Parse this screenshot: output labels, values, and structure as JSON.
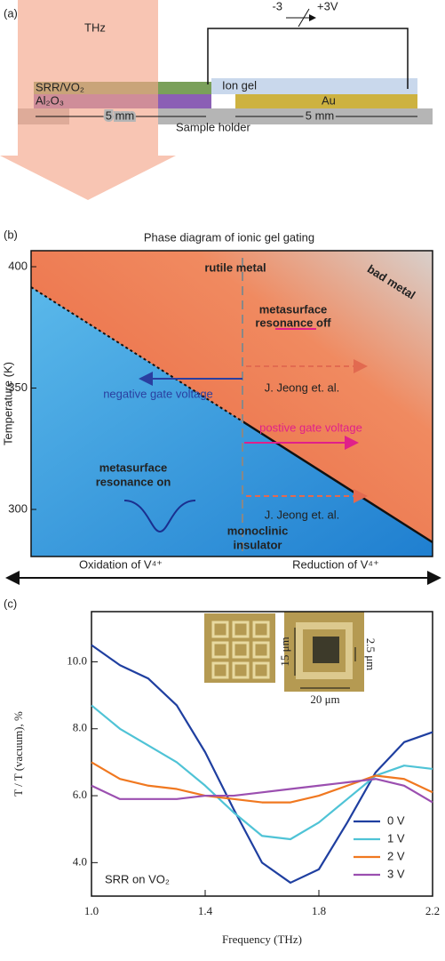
{
  "panel_a": {
    "label": "(a)",
    "beam": "THz",
    "voltage_low": "-3",
    "voltage_high": "+3V",
    "layer_top": "SRR/VO₂",
    "layer_bottom": "Al₂O₃",
    "ion_gel": "Ion gel",
    "electrode": "Au",
    "width_left": "5 mm",
    "width_right": "5 mm",
    "holder": "Sample holder"
  },
  "panel_b": {
    "label": "(b)",
    "title": "Phase diagram of ionic gel gating",
    "ylabel": "Temperature (K)",
    "ylim": [
      280.6,
      406.6
    ],
    "yticks": [
      300,
      350,
      400
    ],
    "rutile": "rutile metal",
    "bad_metal": "bad metal",
    "resonance_off": [
      "metasurface",
      "resonance off"
    ],
    "negative": "negative gate voltage",
    "reference_upper": "J. Jeong et. al.",
    "positive": "postive gate voltage",
    "reference_lower": "J. Jeong et. al.",
    "resonance_on": [
      "metasurface",
      "resonance on"
    ],
    "insulator": [
      "monoclinic",
      "insulator"
    ],
    "oxidation": "Oxidation of V⁴⁺",
    "reduction": "Reduction of V⁴⁺"
  },
  "chart_data": {
    "type": "line",
    "panel_label": "(c)",
    "xlabel": "Frequency (THz)",
    "ylabel": "T / T (vacuum), %",
    "annotation": "SRR on VO₂",
    "inset_height": "15 μm",
    "inset_gap": "2.5 μm",
    "inset_width": "20 μm",
    "legend": "lower right",
    "x": [
      1.0,
      1.1,
      1.2,
      1.3,
      1.4,
      1.5,
      1.6,
      1.7,
      1.8,
      1.9,
      2.0,
      2.1,
      2.2
    ],
    "xlim": [
      1.0,
      2.2
    ],
    "xticks": [
      {
        "value": 1.0,
        "label": "1.0"
      },
      {
        "value": 1.4,
        "label": "1.4"
      },
      {
        "value": 1.8,
        "label": "1.8"
      },
      {
        "value": 2.2,
        "label": "2.2"
      }
    ],
    "ylim": [
      3.0,
      11.5
    ],
    "yticks": [
      {
        "value": 4,
        "label": "4.0"
      },
      {
        "value": 6,
        "label": "6.0"
      },
      {
        "value": 8,
        "label": "8.0"
      },
      {
        "value": 10,
        "label": "10.0"
      }
    ],
    "series": [
      {
        "name": "0 V",
        "color": "#1f3fa0",
        "values": [
          10.5,
          9.9,
          9.5,
          8.7,
          7.3,
          5.6,
          4.0,
          3.4,
          3.8,
          5.2,
          6.7,
          7.6,
          7.9
        ]
      },
      {
        "name": "1 V",
        "color": "#4fc3d6",
        "values": [
          8.7,
          8.0,
          7.5,
          7.0,
          6.3,
          5.5,
          4.8,
          4.7,
          5.2,
          5.9,
          6.6,
          6.9,
          6.8
        ]
      },
      {
        "name": "2 V",
        "color": "#f07820",
        "values": [
          7.0,
          6.5,
          6.3,
          6.2,
          6.0,
          5.9,
          5.8,
          5.8,
          6.0,
          6.3,
          6.6,
          6.5,
          6.1
        ]
      },
      {
        "name": "3 V",
        "color": "#9b4fb0",
        "values": [
          6.3,
          5.9,
          5.9,
          5.9,
          6.0,
          6.0,
          6.1,
          6.2,
          6.3,
          6.4,
          6.5,
          6.3,
          5.8
        ]
      }
    ]
  }
}
